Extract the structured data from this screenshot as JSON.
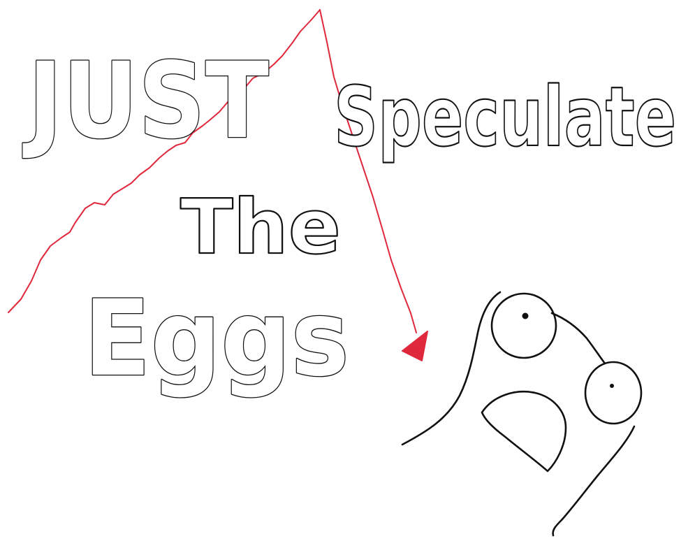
{
  "headline": {
    "word_1": "JUST",
    "word_2": "Speculate",
    "word_3": "The",
    "word_4": "Eggs"
  },
  "colors": {
    "ink": "#111111",
    "trend_line": "#e0283c",
    "background": "#ffffff"
  },
  "icons": {
    "trend_arrow": "red-zigzag-arrow-icon",
    "creature": "googly-eyed-creature-icon"
  }
}
